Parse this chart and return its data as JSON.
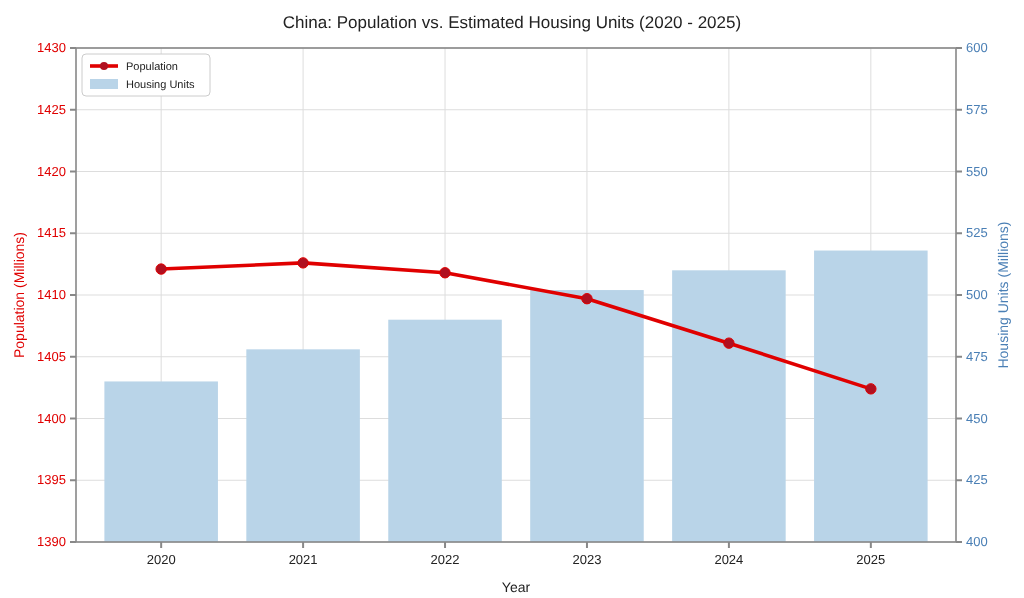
{
  "chart_data": {
    "type": "bar",
    "title": "China: Population vs. Estimated Housing Units (2020 - 2025)",
    "xlabel": "Year",
    "ylabel": "Population (Millions)",
    "y2label": "Housing Units (Millions)",
    "categories": [
      "2020",
      "2021",
      "2022",
      "2023",
      "2024",
      "2025"
    ],
    "series": [
      {
        "name": "Population",
        "type": "line",
        "color": "#e00000",
        "axis": "y",
        "marker": "circle",
        "values": [
          1412.1,
          1412.6,
          1411.8,
          1409.7,
          1406.1,
          1402.4
        ]
      },
      {
        "name": "Housing Units",
        "color": "#b9d4e8",
        "axis": "y2",
        "values": [
          465,
          478,
          490,
          502,
          510,
          518
        ]
      }
    ],
    "ylim": [
      1390,
      1430
    ],
    "yticks": [
      1390,
      1395,
      1400,
      1405,
      1410,
      1415,
      1420,
      1425,
      1430
    ],
    "y2lim": [
      400,
      600
    ],
    "y2ticks": [
      400,
      425,
      450,
      475,
      500,
      525,
      550,
      575,
      600
    ],
    "grid": true,
    "legend": "top left"
  }
}
